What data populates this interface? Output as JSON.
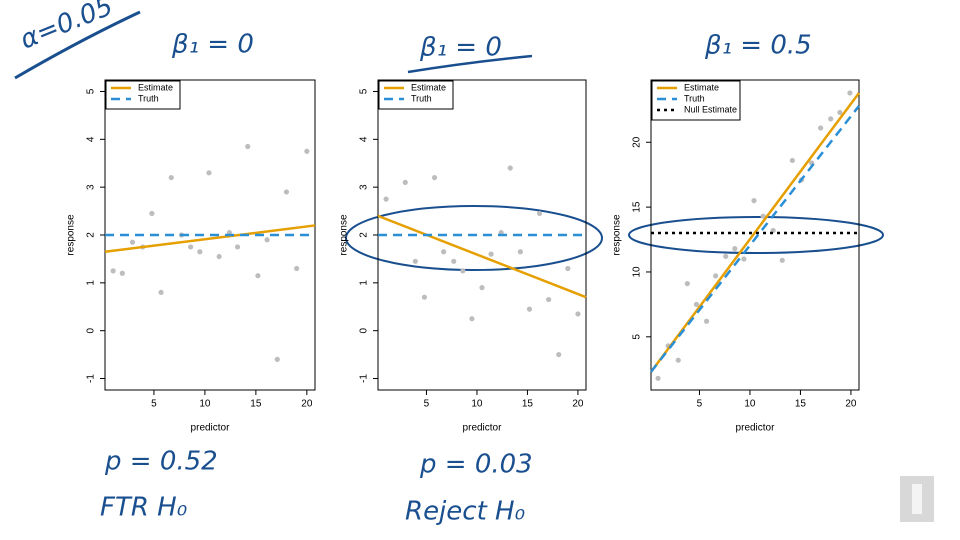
{
  "annotations": {
    "alpha": "α=0.05",
    "beta_1": "β₁ = 0",
    "beta_2": "β₁ = 0",
    "beta_3": "β₁ = 0.5",
    "p_1": "p = 0.52",
    "decision_1": "FTR H₀",
    "p_2": "p = 0.03",
    "decision_2": "Reject H₀"
  },
  "chart_data": [
    {
      "type": "scatter",
      "x_label": "predictor",
      "y_label": "response",
      "point_color": "#bdbdbd",
      "xlim": [
        0.2,
        20.8
      ],
      "ylim": [
        -1.24,
        5.24
      ],
      "xticks": [
        5,
        10,
        15,
        20
      ],
      "yticks": [
        -1,
        0,
        1,
        2,
        3,
        4,
        5
      ],
      "x": [
        1.0,
        1.9,
        2.9,
        3.9,
        4.8,
        5.7,
        6.7,
        7.7,
        8.6,
        9.5,
        10.4,
        11.4,
        12.4,
        13.2,
        14.2,
        15.2,
        16.1,
        17.1,
        18.0,
        19.0,
        20.0
      ],
      "values": [
        1.25,
        1.2,
        1.85,
        1.75,
        2.45,
        0.8,
        3.2,
        2.0,
        1.75,
        1.65,
        3.3,
        1.55,
        2.05,
        1.75,
        3.85,
        1.15,
        1.9,
        -0.6,
        2.9,
        1.3,
        3.75
      ],
      "series": [
        {
          "name": "Estimate",
          "color": "#e69f00",
          "style": "solid",
          "x": [
            0.2,
            20.8
          ],
          "values": [
            1.65,
            2.2
          ]
        },
        {
          "name": "Truth",
          "color": "#2b8fd6",
          "style": "dashed",
          "x": [
            0.2,
            20.8
          ],
          "values": [
            2,
            2
          ]
        }
      ]
    },
    {
      "type": "scatter",
      "x_label": "predictor",
      "y_label": "response",
      "point_color": "#bdbdbd",
      "xlim": [
        0.2,
        20.8
      ],
      "ylim": [
        -1.24,
        5.24
      ],
      "xticks": [
        5,
        10,
        15,
        20
      ],
      "yticks": [
        -1,
        0,
        1,
        2,
        3,
        4,
        5
      ],
      "x": [
        1.0,
        2.9,
        3.9,
        4.8,
        5.8,
        6.7,
        7.7,
        8.6,
        9.5,
        10.5,
        11.4,
        12.4,
        13.3,
        14.3,
        15.2,
        16.2,
        17.1,
        18.1,
        19.0,
        20.0
      ],
      "values": [
        2.75,
        3.1,
        1.45,
        0.7,
        3.2,
        1.65,
        1.45,
        1.25,
        0.25,
        0.9,
        1.6,
        2.05,
        3.4,
        1.65,
        0.45,
        2.45,
        0.65,
        -0.5,
        1.3,
        0.35
      ],
      "series": [
        {
          "name": "Estimate",
          "color": "#e69f00",
          "style": "solid",
          "x": [
            0.2,
            20.8
          ],
          "values": [
            2.4,
            0.7
          ]
        },
        {
          "name": "Truth",
          "color": "#2b8fd6",
          "style": "dashed",
          "x": [
            0.2,
            20.8
          ],
          "values": [
            2,
            2
          ]
        }
      ]
    },
    {
      "type": "scatter",
      "x_label": "predictor",
      "y_label": "response",
      "point_color": "#bdbdbd",
      "xlim": [
        0.2,
        20.8
      ],
      "ylim": [
        0.9,
        24.8
      ],
      "xticks": [
        5,
        10,
        15,
        20
      ],
      "yticks": [
        5,
        10,
        15,
        20
      ],
      "x": [
        0.9,
        1.9,
        2.9,
        3.8,
        4.7,
        5.7,
        6.6,
        7.6,
        8.5,
        9.4,
        10.4,
        11.3,
        12.3,
        13.2,
        14.2,
        15.1,
        16.1,
        17.0,
        18.0,
        18.9,
        19.9
      ],
      "values": [
        1.8,
        4.3,
        3.2,
        9.1,
        7.5,
        6.2,
        9.7,
        11.2,
        11.8,
        11.0,
        15.5,
        14.3,
        13.2,
        10.9,
        18.6,
        17.1,
        18.4,
        21.1,
        21.8,
        22.3,
        23.8
      ],
      "series": [
        {
          "name": "Estimate",
          "color": "#e69f00",
          "style": "solid",
          "x": [
            0.2,
            20.8
          ],
          "values": [
            2.3,
            23.8
          ]
        },
        {
          "name": "Truth",
          "color": "#2b8fd6",
          "style": "dashed",
          "x": [
            0.2,
            20.8
          ],
          "values": [
            2.3,
            22.8
          ]
        },
        {
          "name": "Null Estimate",
          "color": "#000000",
          "style": "dotted",
          "x": [
            0.2,
            20.8
          ],
          "values": [
            13.0,
            13.0
          ]
        }
      ]
    }
  ]
}
